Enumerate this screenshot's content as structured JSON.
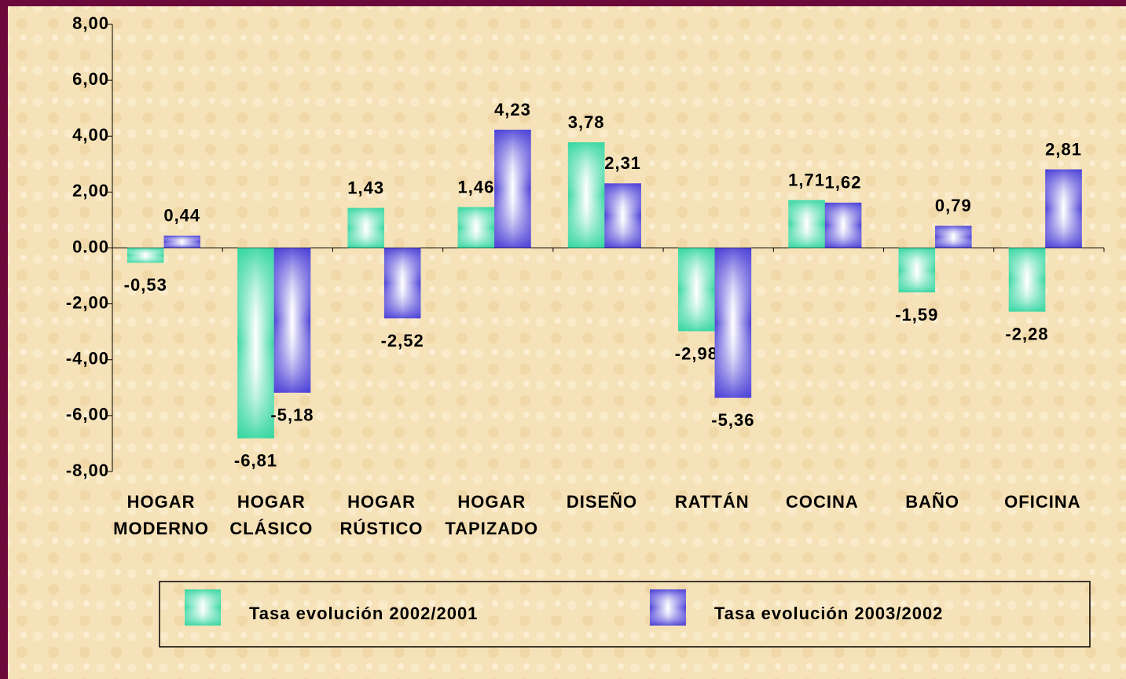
{
  "chart_data": {
    "type": "bar",
    "categories": [
      "HOGAR MODERNO",
      "HOGAR CLÁSICO",
      "HOGAR RÚSTICO",
      "HOGAR TAPIZADO",
      "DISEÑO",
      "RATTÁN",
      "COCINA",
      "BAÑO",
      "OFICINA"
    ],
    "series": [
      {
        "name": "Tasa evolución 2002/2001",
        "color": "#33d6a0",
        "values": [
          -0.53,
          -6.81,
          1.43,
          1.46,
          3.78,
          -2.98,
          1.71,
          -1.59,
          -2.28
        ],
        "value_labels": [
          "-0,53",
          "-6,81",
          "1,43",
          "1,46",
          "3,78",
          "-2,98",
          "1,71",
          "-1,59",
          "-2,28"
        ]
      },
      {
        "name": "Tasa evolución 2003/2002",
        "color": "#4a3fd6",
        "values": [
          0.44,
          -5.18,
          -2.52,
          4.23,
          2.31,
          -5.36,
          1.62,
          0.79,
          2.81
        ],
        "value_labels": [
          "0,44",
          "-5,18",
          "-2,52",
          "4,23",
          "2,31",
          "-5,36",
          "1,62",
          "0,79",
          "2,81"
        ]
      }
    ],
    "ylim": [
      -8,
      8
    ],
    "yticks": [
      {
        "value": -8,
        "label": "-8,00"
      },
      {
        "value": -6,
        "label": "-6,00"
      },
      {
        "value": -4,
        "label": "-4,00"
      },
      {
        "value": -2,
        "label": "-2,00"
      },
      {
        "value": 0,
        "label": "0.00"
      },
      {
        "value": 2,
        "label": "2,00"
      },
      {
        "value": 4,
        "label": "4,00"
      },
      {
        "value": 6,
        "label": "6,00"
      },
      {
        "value": 8,
        "label": "8,00"
      }
    ],
    "legend": "bottom"
  }
}
